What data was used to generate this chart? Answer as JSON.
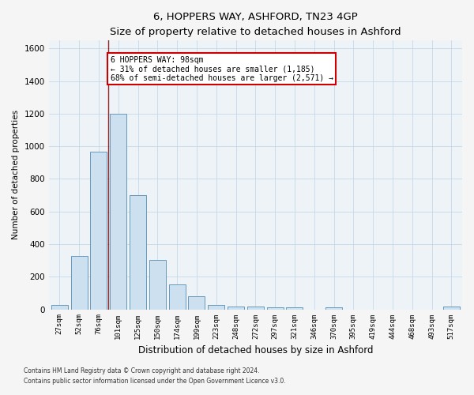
{
  "title": "6, HOPPERS WAY, ASHFORD, TN23 4GP",
  "subtitle": "Size of property relative to detached houses in Ashford",
  "xlabel": "Distribution of detached houses by size in Ashford",
  "ylabel": "Number of detached properties",
  "categories": [
    "27sqm",
    "52sqm",
    "76sqm",
    "101sqm",
    "125sqm",
    "150sqm",
    "174sqm",
    "199sqm",
    "223sqm",
    "248sqm",
    "272sqm",
    "297sqm",
    "321sqm",
    "346sqm",
    "370sqm",
    "395sqm",
    "419sqm",
    "444sqm",
    "468sqm",
    "493sqm",
    "517sqm"
  ],
  "values": [
    28,
    325,
    968,
    1200,
    700,
    305,
    155,
    80,
    28,
    18,
    15,
    10,
    10,
    0,
    13,
    0,
    0,
    0,
    0,
    0,
    15
  ],
  "bar_color": "#cce0f0",
  "bar_edge_color": "#6699bb",
  "bar_edge_width": 0.7,
  "background_color": "#eef3f8",
  "fig_background": "#f5f5f5",
  "vline_x_index": 2.5,
  "vline_color": "#992222",
  "annotation_text": "6 HOPPERS WAY: 98sqm\n← 31% of detached houses are smaller (1,185)\n68% of semi-detached houses are larger (2,571) →",
  "annotation_box_color": "#ffffff",
  "annotation_box_edge": "#cc0000",
  "ylim": [
    0,
    1650
  ],
  "yticks": [
    0,
    200,
    400,
    600,
    800,
    1000,
    1200,
    1400,
    1600
  ],
  "footnote1": "Contains HM Land Registry data © Crown copyright and database right 2024.",
  "footnote2": "Contains public sector information licensed under the Open Government Licence v3.0."
}
